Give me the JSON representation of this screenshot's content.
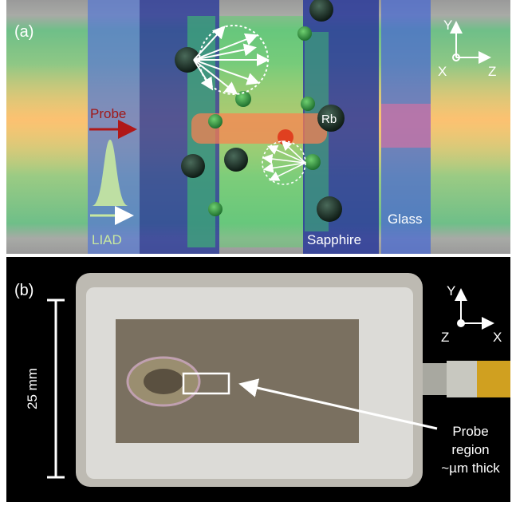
{
  "panel_a": {
    "label": "(a)",
    "axes": {
      "y": "Y",
      "x": "X",
      "z": "Z"
    },
    "probe": "Probe",
    "atom": "Rb",
    "liad": "LIAD",
    "sapphire": "Sapphire",
    "glass": "Glass"
  },
  "panel_b": {
    "label": "(b)",
    "axes": {
      "y": "Y",
      "z": "Z",
      "x": "X"
    },
    "scale": "25 mm",
    "callout": [
      "Probe",
      "region",
      "~µm thick"
    ]
  }
}
